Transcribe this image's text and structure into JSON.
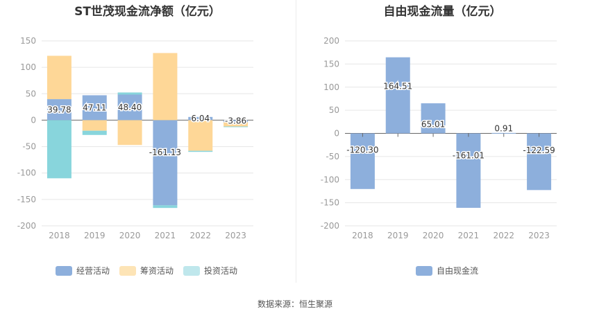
{
  "colors": {
    "operating": "#8dafdc",
    "financing": "#fed797",
    "investing": "#88d5dc",
    "fcf": "#8dafdc",
    "legend_financing": "#fde4b6",
    "legend_investing": "#bfe7ec"
  },
  "source": "数据来源：恒生聚源",
  "chart_data": [
    {
      "type": "bar",
      "stacked": true,
      "title": "ST世茂现金流净额（亿元）",
      "categories": [
        "2018",
        "2019",
        "2020",
        "2021",
        "2022",
        "2023"
      ],
      "ylim": [
        -200,
        150
      ],
      "yticks": [
        150,
        100,
        50,
        0,
        -50,
        -100,
        -150,
        -200
      ],
      "grid": true,
      "legend_position": "bottom",
      "series": [
        {
          "name": "经营活动",
          "values": [
            39.78,
            47.11,
            48.4,
            -161.13,
            6.04,
            -3.86
          ]
        },
        {
          "name": "筹资活动",
          "values": [
            82,
            -20,
            -47,
            127,
            -58,
            -8
          ]
        },
        {
          "name": "投资活动",
          "values": [
            -110,
            -8,
            4,
            -5,
            -2,
            -1
          ]
        }
      ],
      "data_labels": [
        "39.78",
        "47.11",
        "48.40",
        "-161.13",
        "6.04",
        "-3.86"
      ]
    },
    {
      "type": "bar",
      "title": "自由现金流量（亿元）",
      "categories": [
        "2018",
        "2019",
        "2020",
        "2021",
        "2022",
        "2023"
      ],
      "ylim": [
        -200,
        200
      ],
      "yticks": [
        200,
        150,
        100,
        50,
        0,
        -50,
        -100,
        -150,
        -200
      ],
      "grid": true,
      "legend_position": "bottom",
      "series": [
        {
          "name": "自由现金流",
          "values": [
            -120.3,
            164.51,
            65.01,
            -161.01,
            0.91,
            -122.59
          ]
        }
      ],
      "data_labels": [
        "-120.30",
        "164.51",
        "65.01",
        "-161.01",
        "0.91",
        "-122.59"
      ]
    }
  ]
}
